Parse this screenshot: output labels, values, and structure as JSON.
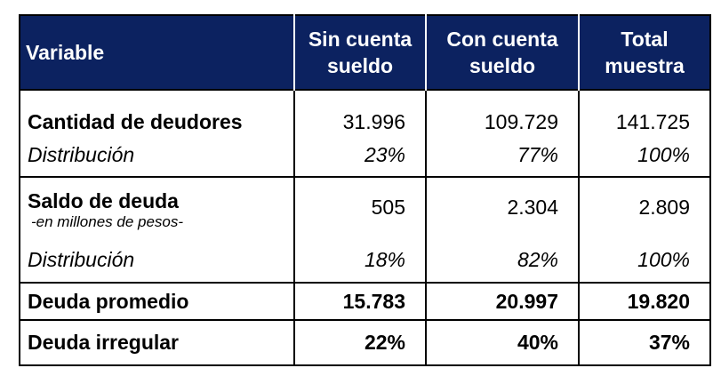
{
  "headers": [
    "Variable",
    "Sin cuenta sueldo",
    "Con cuenta sueldo",
    "Total muestra"
  ],
  "header_lines": [
    [
      "Variable"
    ],
    [
      "Sin cuenta",
      "sueldo"
    ],
    [
      "Con cuenta",
      "sueldo"
    ],
    [
      "Total",
      "muestra"
    ]
  ],
  "rows": [
    {
      "label": "Cantidad de deudores",
      "values": [
        "31.996",
        "109.729",
        "141.725"
      ],
      "style": "bold-label"
    },
    {
      "label": "Distribución",
      "values": [
        "23%",
        "77%",
        "100%"
      ],
      "style": "italic"
    },
    {
      "label": "Saldo de deuda",
      "sublabel": "-en millones de pesos-",
      "values": [
        "505",
        "2.304",
        "2.809"
      ],
      "style": "bold-label"
    },
    {
      "label": "Distribución",
      "values": [
        "18%",
        "82%",
        "100%"
      ],
      "style": "italic"
    },
    {
      "label": "Deuda promedio",
      "values": [
        "15.783",
        "20.997",
        "19.820"
      ],
      "style": "bold"
    },
    {
      "label": "Deuda irregular",
      "values": [
        "22%",
        "40%",
        "37%"
      ],
      "style": "bold"
    }
  ],
  "colors": {
    "header_bg": "#0c2260",
    "header_text": "#ffffff"
  }
}
